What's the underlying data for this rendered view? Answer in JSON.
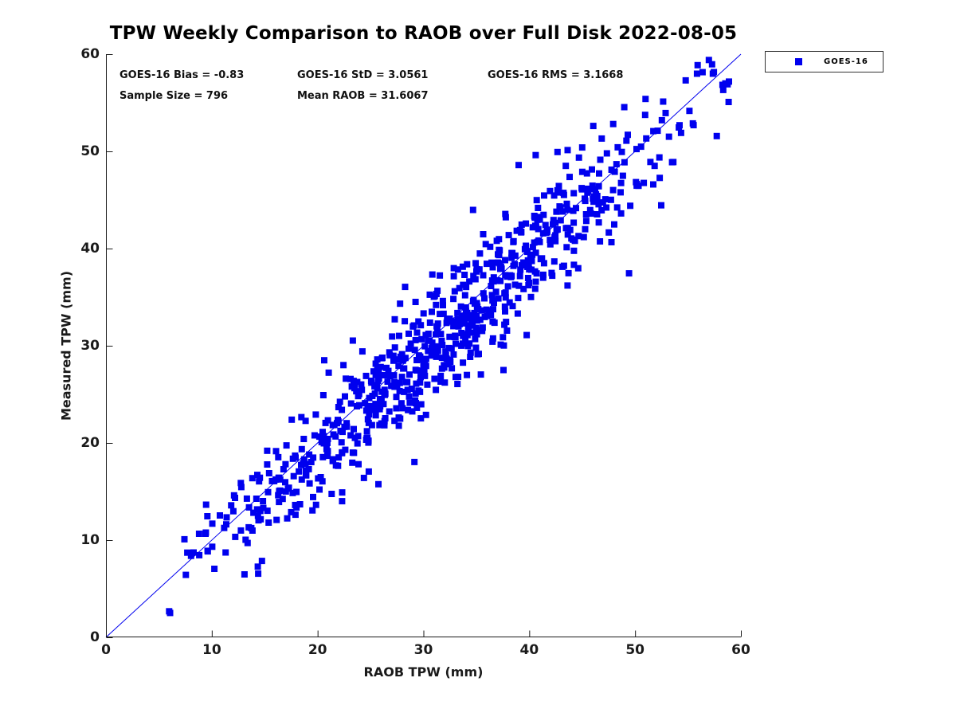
{
  "title": "TPW Weekly Comparison to RAOB over Full Disk 2022-08-05",
  "stats": {
    "row1": [
      "GOES-16 Bias = -0.83",
      "GOES-16 StD = 3.0561",
      "GOES-16 RMS = 3.1668"
    ],
    "row2": [
      "Sample Size = 796",
      "Mean RAOB = 31.6067"
    ]
  },
  "statistics": {
    "bias": -0.83,
    "std": 3.0561,
    "rms": 3.1668,
    "sample_size": 796,
    "mean_raob": 31.6067
  },
  "legend": {
    "label": "GOES-16",
    "position": "top-right-outside"
  },
  "chart_data": {
    "type": "scatter",
    "title": "TPW Weekly Comparison to RAOB over Full Disk 2022-08-05",
    "xlabel": "RAOB TPW (mm)",
    "ylabel": "Measured TPW (mm)",
    "xlim": [
      0,
      60
    ],
    "ylim": [
      0,
      60
    ],
    "xticks": [
      0,
      10,
      20,
      30,
      40,
      50,
      60
    ],
    "yticks": [
      0,
      10,
      20,
      30,
      40,
      50,
      60
    ],
    "grid": false,
    "axis_color": "#1a1a1a",
    "tick_length": 8,
    "reference_line": {
      "from": [
        0,
        0
      ],
      "to": [
        60,
        60
      ],
      "color": "#0000EE",
      "width": 1
    },
    "series": [
      {
        "name": "GOES-16",
        "marker": "square",
        "marker_size": 8,
        "color": "#0000EE",
        "n_points": 796,
        "distribution": {
          "note": "points cluster on the 1:1 line; y = x + bias + residual noise",
          "x_mean": 31.6067,
          "x_std": 11.5,
          "x_min": 5.5,
          "x_max": 59.6,
          "bias": -0.83,
          "residual_std": 3.0561,
          "y_min": 0.6,
          "y_max": 59.4,
          "seed": 20220805
        }
      }
    ]
  }
}
